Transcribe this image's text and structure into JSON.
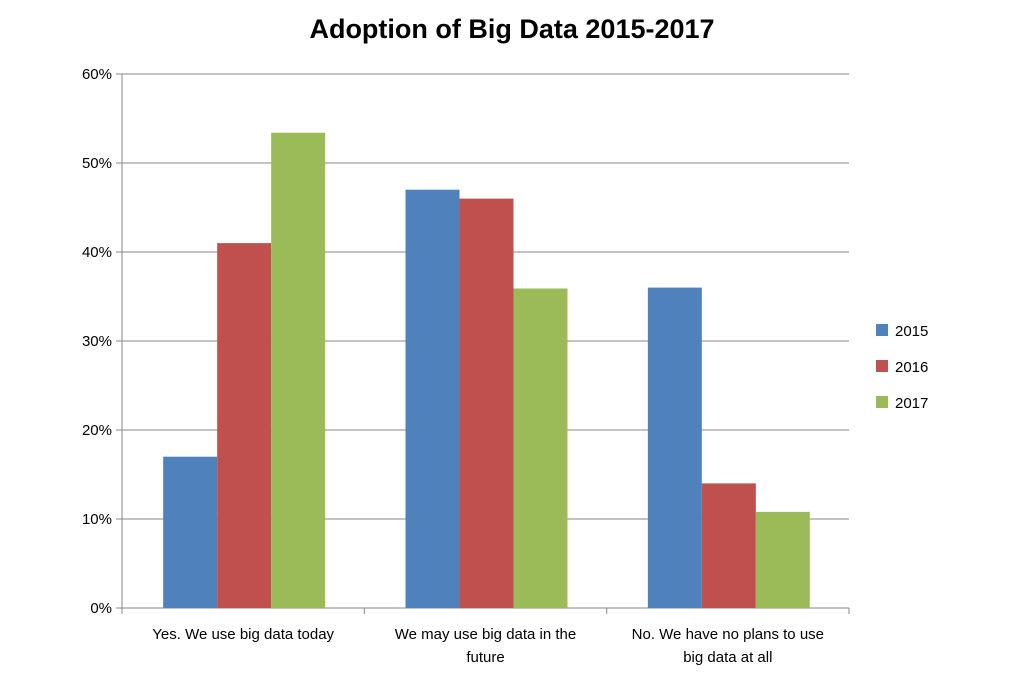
{
  "chart_data": {
    "type": "bar",
    "title": "Adoption of Big Data 2015-2017",
    "xlabel": "",
    "ylabel": "",
    "categories": [
      [
        "Yes. We use big data today"
      ],
      [
        "We may use big data in the",
        "future"
      ],
      [
        "No. We have no plans to use",
        "big data at all"
      ]
    ],
    "series": [
      {
        "name": "2015",
        "color": "#4F81BD",
        "values": [
          17,
          47,
          36
        ]
      },
      {
        "name": "2016",
        "color": "#C0504D",
        "values": [
          41,
          46,
          14
        ]
      },
      {
        "name": "2017",
        "color": "#9BBB59",
        "values": [
          53.4,
          35.9,
          10.8
        ]
      }
    ],
    "ylim": [
      0,
      60
    ],
    "yticks": [
      0,
      10,
      20,
      30,
      40,
      50,
      60
    ],
    "ytick_suffix": "%",
    "grid": true,
    "legend_position": "right"
  }
}
